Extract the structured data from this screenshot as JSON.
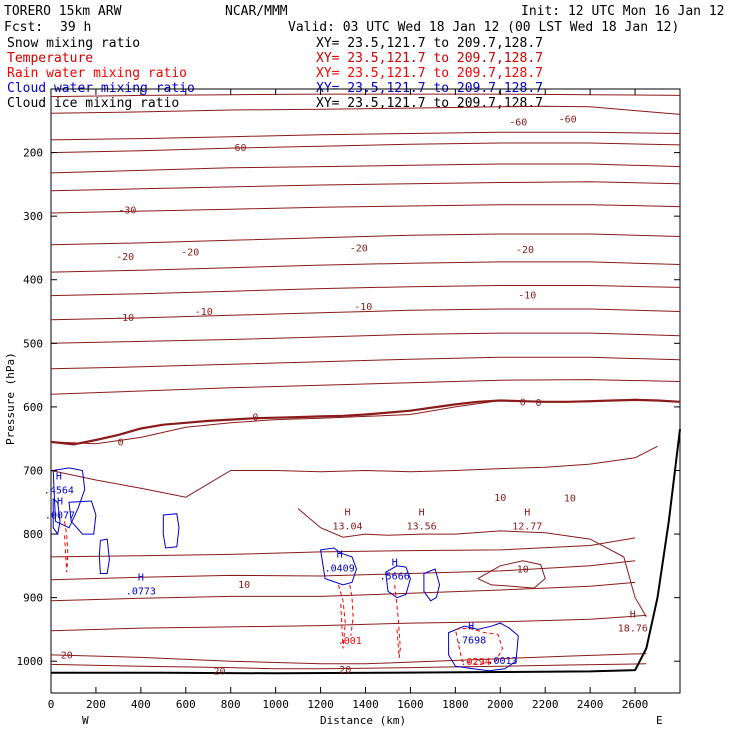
{
  "header": {
    "title_left": "TORERO  15km ARW",
    "title_center": "NCAR/MMM",
    "init": "Init: 12 UTC Mon 16 Jan 12",
    "fcst_label": "Fcst:",
    "fcst_value": "39 h",
    "valid": "Valid: 03 UTC Wed 18 Jan 12 (00 LST Wed 18 Jan 12)"
  },
  "legend": [
    {
      "label": "Snow mixing ratio",
      "xy": "XY=  23.5,121.7 to 209.7,128.7",
      "color": "#000000"
    },
    {
      "label": "Temperature",
      "xy": "XY=  23.5,121.7 to 209.7,128.7",
      "color": "#cc0000"
    },
    {
      "label": "Rain water mixing ratio",
      "xy": "XY=  23.5,121.7 to 209.7,128.7",
      "color": "#ff0000"
    },
    {
      "label": "Cloud water mixing ratio",
      "xy": "XY=  23.5,121.7 to 209.7,128.7",
      "color": "#0000cc"
    },
    {
      "label": "Cloud ice mixing ratio",
      "xy": "XY=  23.5,121.7 to 209.7,128.7",
      "color": "#000000"
    }
  ],
  "chart_data": {
    "type": "contour",
    "xlabel": "Distance (km)",
    "ylabel": "Pressure (hPa)",
    "xlim": [
      0,
      2800
    ],
    "ylim": [
      1050,
      100
    ],
    "x_ticks": [
      0,
      200,
      400,
      600,
      800,
      1000,
      1200,
      1400,
      1600,
      1800,
      2000,
      2200,
      2400,
      2600
    ],
    "y_ticks": [
      200,
      300,
      400,
      500,
      600,
      700,
      800,
      900,
      1000
    ],
    "endpoint_left": "W",
    "endpoint_right": "E",
    "temperature_color": "#8b1a1a",
    "cloud_color": "#0000cc",
    "rain_color": "#ff0000",
    "temperature_contours": [
      {
        "x": [
          0,
          400,
          800,
          1200,
          1600,
          2000,
          2400,
          2800
        ],
        "y": [
          112,
          110,
          109,
          108,
          108,
          108,
          109,
          110
        ]
      },
      {
        "x": [
          0,
          400,
          800,
          1200,
          1600,
          2000,
          2200,
          2400,
          2600,
          2800
        ],
        "y": [
          138,
          136,
          133,
          132,
          130,
          128,
          127,
          128,
          134,
          140
        ]
      },
      {
        "x": [
          0,
          400,
          800,
          1200,
          1600,
          2000,
          2400,
          2800
        ],
        "y": [
          180,
          178,
          175,
          172,
          170,
          168,
          168,
          170
        ]
      },
      {
        "x": [
          0,
          400,
          800,
          1200,
          1600,
          2000,
          2400,
          2800
        ],
        "y": [
          200,
          197,
          193,
          190,
          187,
          185,
          185,
          188
        ]
      },
      {
        "x": [
          0,
          400,
          800,
          1200,
          1600,
          2000,
          2400,
          2800
        ],
        "y": [
          232,
          228,
          224,
          222,
          220,
          218,
          218,
          222
        ]
      },
      {
        "x": [
          0,
          400,
          800,
          1200,
          1600,
          2000,
          2400,
          2800
        ],
        "y": [
          260,
          257,
          254,
          251,
          249,
          247,
          246,
          249
        ]
      },
      {
        "x": [
          0,
          400,
          800,
          1200,
          1600,
          2000,
          2400,
          2800
        ],
        "y": [
          295,
          292,
          289,
          286,
          284,
          282,
          282,
          285
        ]
      },
      {
        "x": [
          0,
          400,
          800,
          1200,
          1600,
          2000,
          2400,
          2800
        ],
        "y": [
          345,
          342,
          338,
          334,
          330,
          328,
          328,
          332
        ]
      },
      {
        "x": [
          0,
          400,
          800,
          1200,
          1600,
          2000,
          2400,
          2800
        ],
        "y": [
          388,
          385,
          381,
          377,
          374,
          372,
          372,
          376
        ]
      },
      {
        "x": [
          0,
          400,
          800,
          1200,
          1600,
          2000,
          2400,
          2800
        ],
        "y": [
          425,
          422,
          418,
          414,
          411,
          409,
          409,
          412
        ]
      },
      {
        "x": [
          0,
          400,
          800,
          1200,
          1600,
          2000,
          2400,
          2800
        ],
        "y": [
          463,
          460,
          456,
          452,
          448,
          446,
          446,
          450
        ]
      },
      {
        "x": [
          0,
          400,
          800,
          1200,
          1600,
          2000,
          2400,
          2800
        ],
        "y": [
          500,
          497,
          494,
          490,
          486,
          484,
          484,
          488
        ]
      },
      {
        "x": [
          0,
          400,
          800,
          1200,
          1600,
          2000,
          2400,
          2800
        ],
        "y": [
          540,
          537,
          533,
          529,
          525,
          522,
          522,
          526
        ]
      },
      {
        "x": [
          0,
          400,
          800,
          1200,
          1600,
          2000,
          2400,
          2800
        ],
        "y": [
          580,
          575,
          570,
          566,
          562,
          558,
          557,
          560
        ]
      },
      {
        "x": [
          0,
          200,
          400,
          600,
          800,
          1000,
          1200,
          1400,
          1600,
          1800,
          2000,
          2200,
          2400,
          2600,
          2800
        ],
        "y": [
          655,
          658,
          648,
          632,
          625,
          620,
          618,
          615,
          612,
          600,
          590,
          592,
          592,
          588,
          592
        ]
      },
      {
        "x": [
          0,
          200,
          400,
          600,
          800,
          1000,
          1200,
          1400,
          1600,
          1800,
          2000,
          2200,
          2400,
          2600,
          2700
        ],
        "y": [
          700,
          715,
          728,
          742,
          700,
          700,
          702,
          700,
          702,
          700,
          697,
          695,
          690,
          680,
          662
        ]
      },
      {
        "x": [
          0,
          400,
          800,
          1200,
          1600,
          2000,
          2400,
          2600
        ],
        "y": [
          836,
          834,
          832,
          828,
          826,
          825,
          818,
          806
        ]
      },
      {
        "x": [
          0,
          400,
          800,
          1200,
          1600,
          2000,
          2400,
          2600
        ],
        "y": [
          872,
          868,
          865,
          866,
          862,
          858,
          850,
          842
        ]
      },
      {
        "x": [
          0,
          400,
          800,
          1200,
          1600,
          2000,
          2400,
          2600
        ],
        "y": [
          905,
          901,
          898,
          898,
          893,
          888,
          882,
          876
        ]
      },
      {
        "x": [
          0,
          400,
          800,
          1200,
          1600,
          2000,
          2400,
          2650
        ],
        "y": [
          952,
          948,
          946,
          944,
          940,
          938,
          934,
          928
        ]
      },
      {
        "x": [
          0,
          400,
          800,
          1200,
          1400,
          1700,
          2000,
          2300,
          2650
        ],
        "y": [
          990,
          994,
          1000,
          1004,
          1004,
          1000,
          996,
          992,
          988
        ]
      },
      {
        "x": [
          0,
          400,
          800,
          1000,
          1200,
          1400,
          1600,
          1800,
          2000,
          2300,
          2650
        ],
        "y": [
          1005,
          1008,
          1010,
          1012,
          1012,
          1011,
          1010,
          1009,
          1008,
          1006,
          1004
        ]
      }
    ],
    "freezing_level": {
      "x": [
        0,
        100,
        200,
        300,
        400,
        500,
        600,
        700,
        800,
        900,
        1000,
        1100,
        1200,
        1300,
        1400,
        1500,
        1600,
        1700,
        1800,
        1900,
        2000,
        2100,
        2200,
        2300,
        2400,
        2500,
        2600,
        2700,
        2800
      ],
      "y": [
        655,
        659,
        652,
        644,
        634,
        628,
        625,
        622,
        620,
        618,
        617,
        616,
        615,
        614,
        612,
        609,
        606,
        601,
        596,
        592,
        590,
        591,
        592,
        592,
        591,
        590,
        589,
        590,
        592
      ]
    },
    "terrain": {
      "x": [
        0,
        500,
        1000,
        1500,
        2000,
        2400,
        2600,
        2650,
        2700,
        2750,
        2800
      ],
      "y": [
        1018,
        1018,
        1019,
        1018,
        1017,
        1016,
        1014,
        980,
        900,
        780,
        635
      ]
    },
    "contour_labels": [
      {
        "text": "-60",
        "x": 830,
        "y": 193,
        "kind": "temp"
      },
      {
        "text": "-60",
        "x": 2080,
        "y": 153,
        "kind": "temp"
      },
      {
        "text": "-60",
        "x": 2300,
        "y": 148,
        "kind": "temp"
      },
      {
        "text": "-30",
        "x": 340,
        "y": 291,
        "kind": "temp"
      },
      {
        "text": "-20",
        "x": 330,
        "y": 364,
        "kind": "temp"
      },
      {
        "text": "-20",
        "x": 620,
        "y": 357,
        "kind": "temp"
      },
      {
        "text": "-20",
        "x": 1370,
        "y": 351,
        "kind": "temp"
      },
      {
        "text": "-20",
        "x": 2110,
        "y": 353,
        "kind": "temp"
      },
      {
        "text": "-10",
        "x": 330,
        "y": 460,
        "kind": "temp"
      },
      {
        "text": "-10",
        "x": 680,
        "y": 451,
        "kind": "temp"
      },
      {
        "text": "-10",
        "x": 1390,
        "y": 443,
        "kind": "temp"
      },
      {
        "text": "-10",
        "x": 2120,
        "y": 425,
        "kind": "temp"
      },
      {
        "text": "0",
        "x": 310,
        "y": 656,
        "kind": "temp"
      },
      {
        "text": "0",
        "x": 910,
        "y": 617,
        "kind": "temp"
      },
      {
        "text": "0",
        "x": 2100,
        "y": 593,
        "kind": "temp"
      },
      {
        "text": "0",
        "x": 2170,
        "y": 594,
        "kind": "temp"
      },
      {
        "text": "10",
        "x": 2000,
        "y": 743,
        "kind": "temp"
      },
      {
        "text": "10",
        "x": 2310,
        "y": 744,
        "kind": "temp"
      },
      {
        "text": "10",
        "x": 860,
        "y": 880,
        "kind": "temp"
      },
      {
        "text": "10",
        "x": 2100,
        "y": 856,
        "kind": "temp"
      },
      {
        "text": "20",
        "x": 70,
        "y": 991,
        "kind": "temp"
      },
      {
        "text": "20",
        "x": 750,
        "y": 1016,
        "kind": "temp"
      },
      {
        "text": "20",
        "x": 1310,
        "y": 1014,
        "kind": "temp"
      }
    ],
    "highs": [
      {
        "label": "H",
        "value": "13.04",
        "x": 1320,
        "y": 790,
        "kind": "temp"
      },
      {
        "label": "H",
        "value": "13.56",
        "x": 1650,
        "y": 790,
        "kind": "temp"
      },
      {
        "label": "H",
        "value": "12.77",
        "x": 2120,
        "y": 790,
        "kind": "temp"
      },
      {
        "label": "H",
        "value": "18.76",
        "x": 2590,
        "y": 950,
        "kind": "temp"
      },
      {
        "label": "H",
        "value": ".4564",
        "x": 35,
        "y": 733,
        "kind": "cloud"
      },
      {
        "label": "H",
        "value": ".0077",
        "x": 40,
        "y": 772,
        "kind": "cloud"
      },
      {
        "label": "H",
        "value": ".0773",
        "x": 400,
        "y": 892,
        "kind": "cloud"
      },
      {
        "label": "H",
        "value": ".0409",
        "x": 1285,
        "y": 856,
        "kind": "cloud"
      },
      {
        "label": "H",
        "value": ".5666",
        "x": 1530,
        "y": 868,
        "kind": "cloud"
      },
      {
        "label": "H",
        "value": ".7698",
        "x": 1870,
        "y": 969,
        "kind": "cloud"
      },
      {
        "label": "",
        "value": ".001",
        "x": 1330,
        "y": 970,
        "kind": "rain"
      },
      {
        "label": "",
        "value": ".0294",
        "x": 1890,
        "y": 1003,
        "kind": "rain"
      },
      {
        "label": "",
        "value": ".0013",
        "x": 2010,
        "y": 1001,
        "kind": "cloud"
      }
    ],
    "cloud_contours": [
      {
        "x": [
          10,
          80,
          140,
          150,
          120,
          80,
          20,
          10
        ],
        "y": [
          700,
          696,
          700,
          730,
          760,
          790,
          780,
          700
        ]
      },
      {
        "x": [
          80,
          180,
          200,
          190,
          140,
          90,
          80
        ],
        "y": [
          750,
          748,
          770,
          800,
          800,
          780,
          750
        ]
      },
      {
        "x": [
          10,
          30,
          40,
          30,
          10
        ],
        "y": [
          745,
          750,
          780,
          800,
          790
        ]
      },
      {
        "x": [
          220,
          250,
          260,
          250,
          220,
          215,
          220
        ],
        "y": [
          810,
          808,
          840,
          862,
          862,
          835,
          810
        ]
      },
      {
        "x": [
          500,
          560,
          570,
          560,
          510,
          500,
          500
        ],
        "y": [
          770,
          768,
          790,
          820,
          822,
          800,
          770
        ]
      },
      {
        "x": [
          1200,
          1260,
          1290,
          1340,
          1360,
          1340,
          1300,
          1220,
          1200
        ],
        "y": [
          825,
          822,
          830,
          836,
          855,
          876,
          880,
          870,
          825
        ]
      },
      {
        "x": [
          1490,
          1540,
          1580,
          1600,
          1580,
          1540,
          1500,
          1490
        ],
        "y": [
          860,
          850,
          852,
          870,
          895,
          900,
          890,
          860
        ]
      },
      {
        "x": [
          1660,
          1710,
          1730,
          1715,
          1690,
          1660,
          1660
        ],
        "y": [
          862,
          855,
          880,
          900,
          905,
          890,
          862
        ]
      },
      {
        "x": [
          1770,
          1840,
          1900,
          1960,
          2000,
          2040,
          2080,
          2070,
          2020,
          1950,
          1880,
          1800,
          1770,
          1770
        ],
        "y": [
          955,
          945,
          950,
          945,
          940,
          948,
          960,
          1000,
          1012,
          1015,
          1012,
          1008,
          990,
          955
        ]
      }
    ],
    "rain_contours": [
      {
        "x": [
          60,
          70,
          75,
          70,
          60
        ],
        "y": [
          780,
          800,
          830,
          860,
          800
        ]
      },
      {
        "x": [
          1280,
          1300,
          1310,
          1300,
          1290
        ],
        "y": [
          880,
          905,
          940,
          980,
          910
        ]
      },
      {
        "x": [
          1330,
          1340,
          1345,
          1335
        ],
        "y": [
          880,
          900,
          930,
          960
        ]
      },
      {
        "x": [
          1530,
          1545,
          1555,
          1550,
          1540
        ],
        "y": [
          880,
          930,
          980,
          995,
          950
        ]
      },
      {
        "x": [
          1800,
          1860,
          1930,
          1990,
          2010,
          1980,
          1900,
          1830,
          1800
        ],
        "y": [
          950,
          948,
          955,
          958,
          980,
          1000,
          1005,
          1000,
          950
        ]
      }
    ],
    "temp_closed_contours": [
      {
        "x": [
          1900,
          2000,
          2100,
          2180,
          2200,
          2150,
          2050,
          1960,
          1900
        ],
        "y": [
          870,
          850,
          842,
          848,
          870,
          885,
          882,
          880,
          870
        ]
      },
      {
        "x": [
          1100,
          1200,
          1300,
          1400,
          1500,
          1650,
          1800,
          2000,
          2200,
          2400,
          2550,
          2600,
          2650
        ],
        "y": [
          760,
          790,
          805,
          800,
          802,
          800,
          800,
          795,
          798,
          808,
          836,
          900,
          930
        ]
      }
    ]
  }
}
